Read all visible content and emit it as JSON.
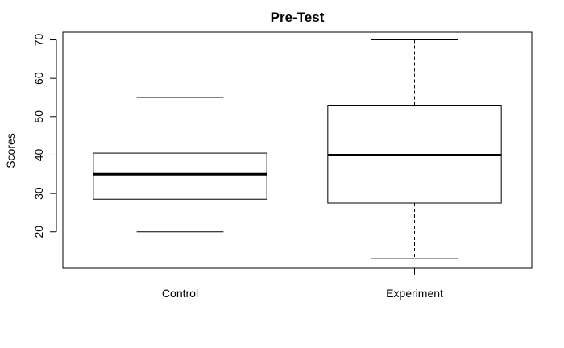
{
  "chart_data": {
    "type": "boxplot",
    "title": "Pre-Test",
    "xlabel": "",
    "ylabel": "Scores",
    "categories": [
      "Control",
      "Experiment"
    ],
    "boxes": [
      {
        "name": "Control",
        "min": 20,
        "q1": 28.5,
        "median": 35,
        "q3": 40.5,
        "max": 55
      },
      {
        "name": "Experiment",
        "min": 13,
        "q1": 27.5,
        "median": 40,
        "q3": 53,
        "max": 70
      }
    ],
    "yticks": [
      20,
      30,
      40,
      50,
      60,
      70
    ],
    "ylim": [
      10.5,
      72
    ],
    "grid": false,
    "legend": "none"
  }
}
